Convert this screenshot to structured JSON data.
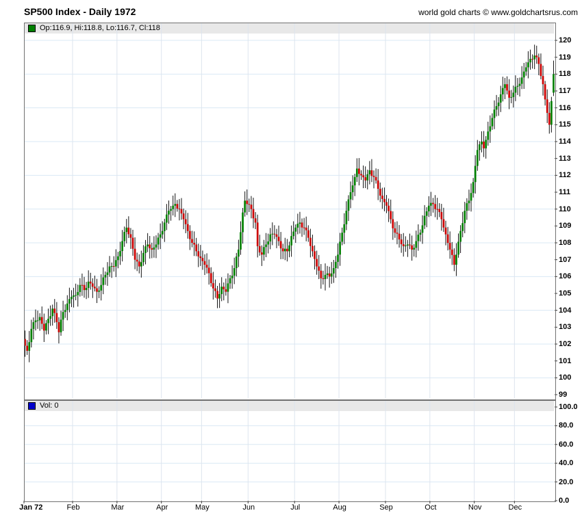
{
  "header": {
    "title": "SP500 Index - Daily 1972",
    "attribution": "world gold charts © www.goldchartsrus.com"
  },
  "main_legend": {
    "label": "Op:116.9, Hi:118.8, Lo:116.7, Cl:118"
  },
  "volume_legend": {
    "label": "Vol: 0"
  },
  "colors": {
    "candle_up": "#008000",
    "candle_down": "#cc0000",
    "wick": "#111111",
    "legend_swatch_up": "#008000",
    "volume_swatch": "#0000cc",
    "legend_bg": "#e8e8e8",
    "grid_h": "#d9e8f4",
    "grid_v": "#dde4ee",
    "axis_tick": "#333333",
    "panel_border": "#707070"
  },
  "chart_data": {
    "type": "candlestick",
    "title": "SP500 Index - Daily 1972",
    "y_axis": {
      "min": 99,
      "max": 120,
      "tick_step": 1,
      "grid_step": 2,
      "side": "right"
    },
    "x_axis": {
      "total_days": 251,
      "months": [
        {
          "label": "Jan 72",
          "day": 0,
          "label_day": 3,
          "bold": true
        },
        {
          "label": "Feb",
          "day": 23
        },
        {
          "label": "Mar",
          "day": 44
        },
        {
          "label": "Apr",
          "day": 65
        },
        {
          "label": "May",
          "day": 84
        },
        {
          "label": "Jun",
          "day": 106
        },
        {
          "label": "Jul",
          "day": 128
        },
        {
          "label": "Aug",
          "day": 149
        },
        {
          "label": "Sep",
          "day": 171
        },
        {
          "label": "Oct",
          "day": 192
        },
        {
          "label": "Nov",
          "day": 213
        },
        {
          "label": "Dec",
          "day": 232
        }
      ]
    },
    "first_open": 102.3,
    "last_ohlc": {
      "open": 116.9,
      "high": 118.8,
      "low": 116.7,
      "close": 118
    },
    "anchor_closes": [
      [
        0,
        101.9
      ],
      [
        1,
        101.6
      ],
      [
        3,
        102.9
      ],
      [
        5,
        103.4
      ],
      [
        7,
        103.6
      ],
      [
        9,
        102.8
      ],
      [
        11,
        103.5
      ],
      [
        13,
        104.1
      ],
      [
        15,
        103.3
      ],
      [
        16,
        102.7
      ],
      [
        18,
        103.9
      ],
      [
        20,
        104.4
      ],
      [
        22,
        104.8
      ],
      [
        24,
        104.9
      ],
      [
        26,
        105.5
      ],
      [
        28,
        105.2
      ],
      [
        30,
        105.7
      ],
      [
        32,
        105.4
      ],
      [
        34,
        105.1
      ],
      [
        36,
        105.5
      ],
      [
        38,
        106.1
      ],
      [
        40,
        106.6
      ],
      [
        42,
        106.6
      ],
      [
        44,
        107.2
      ],
      [
        46,
        108.1
      ],
      [
        48,
        108.9
      ],
      [
        50,
        108.3
      ],
      [
        52,
        107.0
      ],
      [
        54,
        106.6
      ],
      [
        56,
        107.4
      ],
      [
        58,
        107.9
      ],
      [
        60,
        107.6
      ],
      [
        62,
        107.9
      ],
      [
        64,
        108.5
      ],
      [
        66,
        109.2
      ],
      [
        68,
        109.9
      ],
      [
        70,
        110.2
      ],
      [
        71,
        110.3
      ],
      [
        73,
        110.0
      ],
      [
        75,
        109.4
      ],
      [
        77,
        108.7
      ],
      [
        79,
        108.0
      ],
      [
        81,
        107.5
      ],
      [
        83,
        107.1
      ],
      [
        85,
        106.7
      ],
      [
        87,
        106.2
      ],
      [
        89,
        105.3
      ],
      [
        91,
        104.7
      ],
      [
        93,
        105.4
      ],
      [
        95,
        105.1
      ],
      [
        97,
        105.9
      ],
      [
        99,
        106.5
      ],
      [
        101,
        107.6
      ],
      [
        103,
        109.8
      ],
      [
        104,
        110.5
      ],
      [
        105,
        110.3
      ],
      [
        107,
        110.0
      ],
      [
        109,
        109.2
      ],
      [
        110,
        107.8
      ],
      [
        112,
        107.3
      ],
      [
        114,
        107.9
      ],
      [
        116,
        108.5
      ],
      [
        118,
        108.5
      ],
      [
        120,
        108.1
      ],
      [
        122,
        107.5
      ],
      [
        124,
        107.5
      ],
      [
        126,
        108.4
      ],
      [
        128,
        108.9
      ],
      [
        130,
        109.2
      ],
      [
        132,
        108.9
      ],
      [
        134,
        108.3
      ],
      [
        136,
        107.5
      ],
      [
        138,
        106.6
      ],
      [
        140,
        105.9
      ],
      [
        142,
        106.1
      ],
      [
        144,
        106.0
      ],
      [
        146,
        106.5
      ],
      [
        148,
        107.3
      ],
      [
        150,
        108.6
      ],
      [
        152,
        109.9
      ],
      [
        154,
        111.0
      ],
      [
        156,
        111.9
      ],
      [
        157,
        112.4
      ],
      [
        159,
        112.0
      ],
      [
        161,
        111.7
      ],
      [
        163,
        112.3
      ],
      [
        165,
        111.9
      ],
      [
        167,
        111.2
      ],
      [
        169,
        110.6
      ],
      [
        171,
        110.2
      ],
      [
        173,
        109.4
      ],
      [
        175,
        108.6
      ],
      [
        177,
        108.2
      ],
      [
        179,
        107.8
      ],
      [
        181,
        107.9
      ],
      [
        183,
        107.6
      ],
      [
        185,
        108.1
      ],
      [
        187,
        108.6
      ],
      [
        189,
        109.6
      ],
      [
        191,
        110.2
      ],
      [
        193,
        110.3
      ],
      [
        195,
        110.0
      ],
      [
        197,
        109.4
      ],
      [
        199,
        108.5
      ],
      [
        201,
        107.6
      ],
      [
        203,
        106.7
      ],
      [
        204,
        107.3
      ],
      [
        206,
        108.7
      ],
      [
        208,
        109.9
      ],
      [
        210,
        110.5
      ],
      [
        212,
        111.6
      ],
      [
        214,
        113.5
      ],
      [
        216,
        114.0
      ],
      [
        217,
        113.6
      ],
      [
        219,
        114.6
      ],
      [
        221,
        115.4
      ],
      [
        223,
        116.1
      ],
      [
        225,
        116.8
      ],
      [
        227,
        117.4
      ],
      [
        229,
        116.6
      ],
      [
        231,
        116.9
      ],
      [
        233,
        117.3
      ],
      [
        235,
        117.8
      ],
      [
        237,
        118.4
      ],
      [
        239,
        118.9
      ],
      [
        241,
        119.1
      ],
      [
        243,
        118.6
      ],
      [
        245,
        117.4
      ],
      [
        246,
        116.5
      ],
      [
        247,
        115.7
      ],
      [
        248,
        115.0
      ],
      [
        249,
        116.4
      ],
      [
        250,
        118.0
      ]
    ],
    "volume_panel": {
      "type": "bar",
      "y_ticks": [
        "100.0",
        "80.0",
        "60.0",
        "40.0",
        "20.0",
        "0.0"
      ],
      "values_constant": 0
    }
  }
}
